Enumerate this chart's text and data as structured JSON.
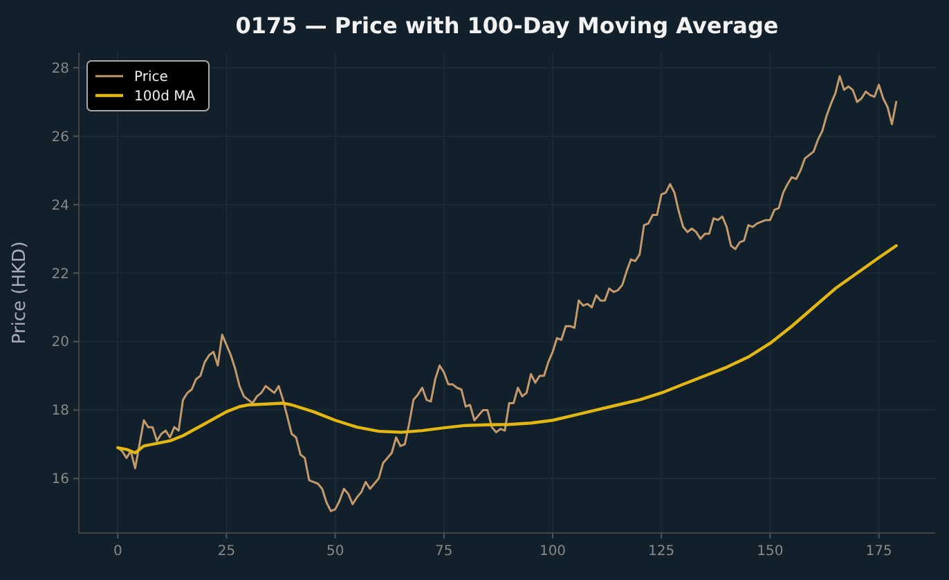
{
  "chart_data": {
    "type": "line",
    "title": "0175 — Price with 100-Day Moving Average",
    "ylabel": "Price (HKD)",
    "xlim": [
      -8.95,
      187.95
    ],
    "ylim": [
      14.41,
      28.44
    ],
    "xticks": [
      0,
      25,
      50,
      75,
      100,
      125,
      150,
      175
    ],
    "yticks": [
      16,
      18,
      20,
      22,
      24,
      26,
      28
    ],
    "grid": true,
    "legend": "top left",
    "line_style": "solid",
    "marker": "none",
    "series": [
      {
        "name": "Price",
        "color": "#c49a6c",
        "x": [
          0,
          1,
          2,
          3,
          4,
          5,
          6,
          7,
          8,
          9,
          10,
          11,
          12,
          13,
          14,
          15,
          16,
          17,
          18,
          19,
          20,
          21,
          22,
          23,
          24,
          25,
          26,
          27,
          28,
          29,
          30,
          31,
          32,
          33,
          34,
          35,
          36,
          37,
          38,
          39,
          40,
          41,
          42,
          43,
          44,
          45,
          46,
          47,
          48,
          49,
          50,
          51,
          52,
          53,
          54,
          55,
          56,
          57,
          58,
          59,
          60,
          61,
          62,
          63,
          64,
          65,
          66,
          67,
          68,
          69,
          70,
          71,
          72,
          73,
          74,
          75,
          76,
          77,
          78,
          79,
          80,
          81,
          82,
          83,
          84,
          85,
          86,
          87,
          88,
          89,
          90,
          91,
          92,
          93,
          94,
          95,
          96,
          97,
          98,
          99,
          100,
          101,
          102,
          103,
          104,
          105,
          106,
          107,
          108,
          109,
          110,
          111,
          112,
          113,
          114,
          115,
          116,
          117,
          118,
          119,
          120,
          121,
          122,
          123,
          124,
          125,
          126,
          127,
          128,
          129,
          130,
          131,
          132,
          133,
          134,
          135,
          136,
          137,
          138,
          139,
          140,
          141,
          142,
          143,
          144,
          145,
          146,
          147,
          148,
          149,
          150,
          151,
          152,
          153,
          154,
          155,
          156,
          157,
          158,
          159,
          160,
          161,
          162,
          163,
          164,
          165,
          166,
          167,
          168,
          169,
          170,
          171,
          172,
          173,
          174,
          175,
          176,
          177,
          178,
          179
        ],
        "values": [
          16.9,
          16.8,
          16.6,
          16.8,
          16.3,
          17.0,
          17.7,
          17.5,
          17.5,
          17.1,
          17.3,
          17.4,
          17.2,
          17.5,
          17.4,
          18.3,
          18.5,
          18.6,
          18.9,
          19.0,
          19.4,
          19.6,
          19.7,
          19.3,
          20.2,
          19.9,
          19.6,
          19.2,
          18.7,
          18.4,
          18.3,
          18.2,
          18.4,
          18.5,
          18.7,
          18.6,
          18.5,
          18.7,
          18.3,
          17.8,
          17.3,
          17.2,
          16.7,
          16.6,
          15.95,
          15.9,
          15.85,
          15.7,
          15.3,
          15.05,
          15.1,
          15.35,
          15.7,
          15.55,
          15.25,
          15.45,
          15.6,
          15.9,
          15.7,
          15.85,
          16.0,
          16.45,
          16.6,
          16.75,
          17.2,
          16.95,
          17.0,
          17.6,
          18.3,
          18.45,
          18.65,
          18.3,
          18.25,
          18.9,
          19.3,
          19.1,
          18.75,
          18.75,
          18.65,
          18.6,
          18.1,
          18.15,
          17.7,
          17.85,
          18.0,
          18.0,
          17.5,
          17.35,
          17.45,
          17.4,
          18.2,
          18.2,
          18.65,
          18.4,
          18.5,
          19.05,
          18.8,
          19.0,
          19.0,
          19.4,
          19.7,
          20.1,
          20.05,
          20.45,
          20.45,
          20.4,
          21.2,
          21.05,
          21.1,
          21.0,
          21.35,
          21.2,
          21.2,
          21.55,
          21.45,
          21.5,
          21.65,
          22.05,
          22.4,
          22.35,
          22.55,
          23.4,
          23.45,
          23.7,
          23.7,
          24.3,
          24.35,
          24.6,
          24.35,
          23.8,
          23.35,
          23.2,
          23.3,
          23.2,
          23.0,
          23.15,
          23.15,
          23.6,
          23.55,
          23.65,
          23.35,
          22.8,
          22.7,
          22.9,
          22.95,
          23.4,
          23.35,
          23.45,
          23.5,
          23.55,
          23.55,
          23.85,
          23.9,
          24.35,
          24.6,
          24.8,
          24.75,
          25.0,
          25.35,
          25.45,
          25.55,
          25.9,
          26.15,
          26.6,
          26.95,
          27.25,
          27.75,
          27.35,
          27.45,
          27.35,
          27.0,
          27.1,
          27.3,
          27.2,
          27.15,
          27.5,
          27.1,
          26.85,
          26.35,
          27.0
        ]
      },
      {
        "name": "100d MA",
        "color": "#e2b714",
        "x": [
          0,
          2,
          4,
          6,
          8,
          10,
          12,
          15,
          20,
          25,
          28,
          30,
          35,
          38,
          40,
          45,
          50,
          55,
          60,
          65,
          70,
          75,
          80,
          85,
          90,
          95,
          100,
          105,
          110,
          115,
          120,
          125,
          130,
          135,
          140,
          145,
          150,
          155,
          160,
          165,
          170,
          175,
          179
        ],
        "values": [
          16.9,
          16.85,
          16.75,
          16.95,
          17.0,
          17.05,
          17.1,
          17.25,
          17.6,
          17.95,
          18.1,
          18.15,
          18.18,
          18.2,
          18.15,
          17.95,
          17.7,
          17.5,
          17.38,
          17.35,
          17.4,
          17.48,
          17.55,
          17.57,
          17.58,
          17.62,
          17.7,
          17.85,
          18.0,
          18.15,
          18.3,
          18.5,
          18.75,
          19.0,
          19.25,
          19.55,
          19.95,
          20.45,
          21.0,
          21.55,
          22.0,
          22.45,
          22.8
        ]
      }
    ]
  }
}
